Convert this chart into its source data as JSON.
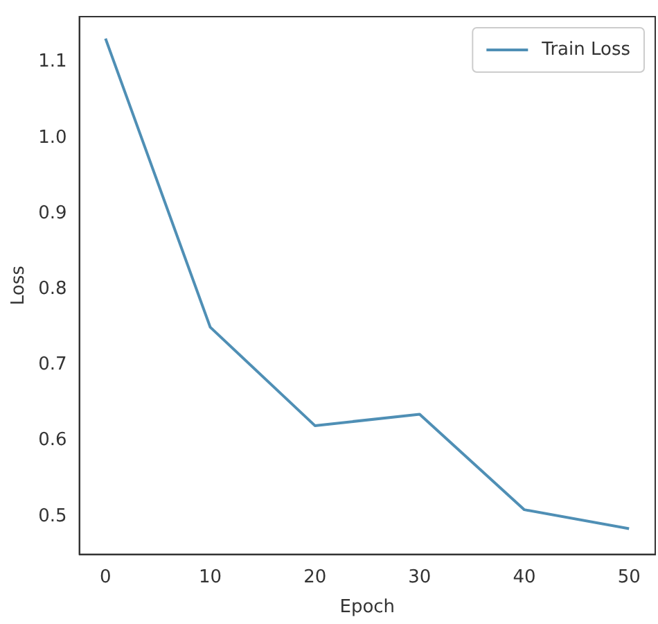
{
  "chart_data": {
    "type": "line",
    "xlabel": "Epoch",
    "ylabel": "Loss",
    "x": [
      0,
      10,
      20,
      30,
      40,
      50
    ],
    "series": [
      {
        "name": "Train Loss",
        "color": "#4f8fb5",
        "values": [
          1.131,
          0.75,
          0.62,
          0.635,
          0.509,
          0.484
        ]
      }
    ],
    "xlim": [
      -2.5,
      52.5
    ],
    "xticks": [
      0,
      10,
      20,
      30,
      40,
      50
    ],
    "ylim": [
      0.45,
      1.16
    ],
    "yticks": [
      0.5,
      0.6,
      0.7,
      0.8,
      0.9,
      {
        "value": 1,
        "label": "1.0"
      },
      1.1
    ],
    "grid": false,
    "legend": "top right",
    "marker": "none",
    "line_style": "solid"
  }
}
